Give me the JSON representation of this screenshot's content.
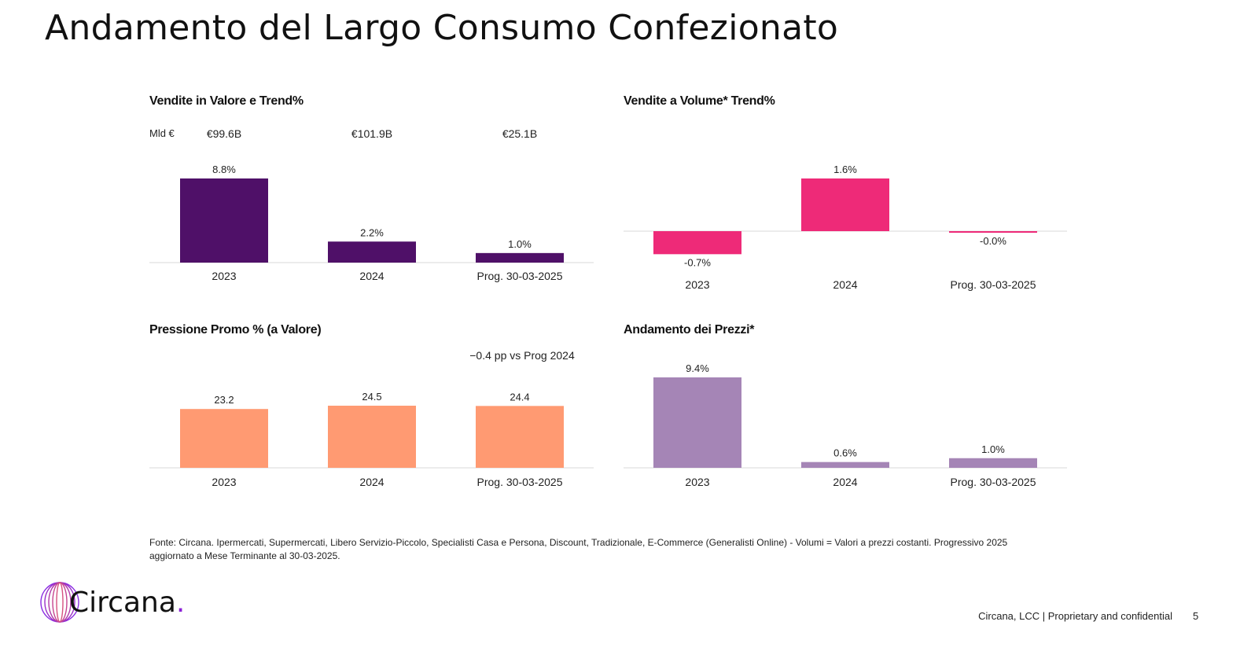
{
  "page": {
    "title": "Andamento del Largo Consumo Confezionato",
    "footnote_line1": "Fonte: Circana. Ipermercati, Supermercati, Libero Servizio-Piccolo, Specialisti Casa e Persona, Discount, Tradizionale, E-Commerce (Generalisti Online) - Volumi = Valori a prezzi costanti. Progressivo 2025",
    "footnote_line2": "aggiornato a Mese Terminante al 30-03-2025.",
    "logo_text": "Circana",
    "logo_dot": ".",
    "footer_text": "Circana, LCC |  Proprietary and confidential",
    "page_number": "5"
  },
  "colors": {
    "valore": "#4f1068",
    "volume": "#ee2a78",
    "promo": "#ff9a72",
    "prezzi": "#a585b6",
    "axis": "#d9d9d9"
  },
  "chart_data": [
    {
      "id": "vendite-valore",
      "type": "bar",
      "title": "Vendite in Valore e Trend%",
      "unit_label": "Mld €",
      "categories": [
        "2023",
        "2024",
        "Prog. 30-03-2025"
      ],
      "values": [
        8.8,
        2.2,
        1.0
      ],
      "data_labels": [
        "8.8%",
        "2.2%",
        "1.0%"
      ],
      "absolute_values": [
        "€99.6B",
        "€101.9B",
        "€25.1B"
      ],
      "xlabel": "",
      "ylabel": "",
      "ylim": [
        0,
        8.8
      ],
      "grid": false,
      "legend": "none"
    },
    {
      "id": "vendite-volume",
      "type": "bar",
      "title": "Vendite a Volume* Trend%",
      "categories": [
        "2023",
        "2024",
        "Prog. 30-03-2025"
      ],
      "values": [
        -0.7,
        1.6,
        -0.04
      ],
      "data_labels": [
        "-0.7%",
        "1.6%",
        "-0.0%"
      ],
      "xlabel": "",
      "ylabel": "",
      "ylim": [
        -0.7,
        1.6
      ],
      "grid": false,
      "legend": "none"
    },
    {
      "id": "pressione-promo",
      "type": "bar",
      "title": "Pressione Promo % (a Valore)",
      "categories": [
        "2023",
        "2024",
        "Prog. 30-03-2025"
      ],
      "values": [
        23.2,
        24.5,
        24.4
      ],
      "data_labels": [
        "23.2",
        "24.5",
        "24.4"
      ],
      "annotation": "−0.4 pp vs Prog 2024",
      "annotation_category": "Prog. 30-03-2025",
      "xlabel": "",
      "ylabel": "",
      "ylim": [
        0,
        24.5
      ],
      "grid": false,
      "legend": "none"
    },
    {
      "id": "andamento-prezzi",
      "type": "bar",
      "title": "Andamento dei Prezzi*",
      "categories": [
        "2023",
        "2024",
        "Prog. 30-03-2025"
      ],
      "values": [
        9.4,
        0.6,
        1.0
      ],
      "data_labels": [
        "9.4%",
        "0.6%",
        "1.0%"
      ],
      "xlabel": "",
      "ylabel": "",
      "ylim": [
        0,
        9.4
      ],
      "grid": false,
      "legend": "none"
    }
  ]
}
